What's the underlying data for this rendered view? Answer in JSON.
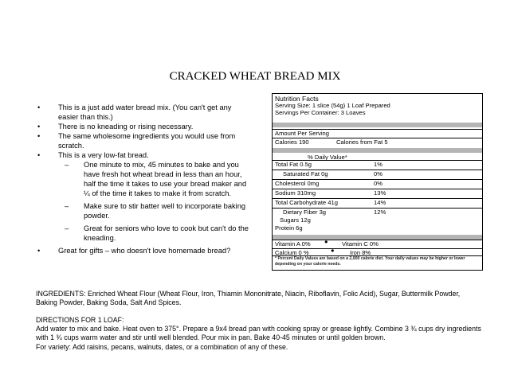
{
  "title": "CRACKED WHEAT BREAD MIX",
  "bullets": [
    {
      "text": "This is a just add water bread mix. (You can't get any easier than this.)"
    },
    {
      "text": "There is no kneading or rising necessary."
    },
    {
      "text": "The same wholesome ingredients you would use from scratch."
    },
    {
      "text": "This is a very low-fat bread.",
      "sub": [
        "One minute to mix, 45 minutes to bake and you have fresh hot wheat bread in less than an hour, half the time it takes to use your bread maker and ¼ of the time it takes to make it from scratch.",
        "Make sure to stir batter well to incorporate baking powder.",
        "Great for seniors who love to cook but can't do the kneading."
      ]
    },
    {
      "text": "Great for gifts – who doesn't love homemade bread?"
    }
  ],
  "nutrition": {
    "heading": "Nutrition Facts",
    "serving_size": "Serving Size: 1 slice (54g) 1 Loaf Prepared",
    "servings": "Servings Per Container: 3 Loaves",
    "amount": "Amount Per Serving",
    "calories": "Calories 190",
    "calories_fat": "Calories from Fat 5",
    "dv_header": "% Daily Value*",
    "rows": [
      {
        "label": "Total Fat   0.5g",
        "dv": "1%"
      },
      {
        "label": "Saturated Fat 0g",
        "dv": "0%"
      },
      {
        "label": "Cholesterol   0mg",
        "dv": "0%"
      },
      {
        "label": "Sodium   310mg",
        "dv": "13%"
      },
      {
        "label": "Total Carbohydrate 41g",
        "dv": "14%"
      },
      {
        "label": "Dietary Fiber 3g",
        "dv": "12%"
      },
      {
        "label": "Sugars 12g",
        "dv": ""
      },
      {
        "label": "Protein 6g",
        "dv": ""
      }
    ],
    "vitamin_a": "Vitamin A 0%",
    "vitamin_c": "Vitamin C 0%",
    "calcium": "Calcium   0 %",
    "iron": "Iron  8%",
    "bullet": "●",
    "footnote": "* Percent Daily Values are based on a 2,000 calorie diet. Your daily values may be higher or lower depending on your calorie needs."
  },
  "ingredients": "INGREDIENTS:  Enriched Wheat Flour (Wheat Flour, Iron, Thiamin Mononitrate, Niacin, Riboflavin, Folic Acid), Sugar, Buttermilk Powder, Baking Powder, Baking Soda, Salt And Spices.",
  "directions_heading": "DIRECTIONS FOR 1 LOAF:",
  "directions": "Add water to mix and bake. Heat oven to 375°. Prepare a 9x4 bread pan with cooking spray or grease lightly.   Combine 3 ¾ cups dry ingredients with 1 ¾ cups warm water and stir until well blended.  Pour mix in pan.  Bake 40-45 minutes or until golden brown.",
  "variety": "For variety: Add raisins, pecans, walnuts, dates, or a combination of any of these."
}
